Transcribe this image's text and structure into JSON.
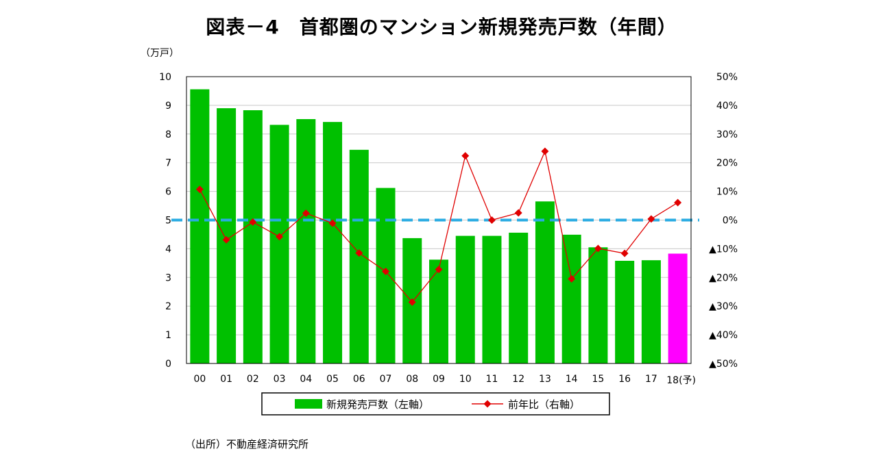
{
  "title": "図表－4　首都圏のマンション新規発売戸数（年間）",
  "source": "（出所）不動産経済研究所",
  "chart_data": {
    "type": "bar",
    "categories": [
      "00",
      "01",
      "02",
      "03",
      "04",
      "05",
      "06",
      "07",
      "08",
      "09",
      "10",
      "11",
      "12",
      "13",
      "14",
      "15",
      "16",
      "17",
      "18(予)"
    ],
    "left_axis": {
      "unit_label": "（万戸）",
      "min": 0,
      "max": 10,
      "ticks": [
        "0",
        "1",
        "2",
        "3",
        "4",
        "5",
        "6",
        "7",
        "8",
        "9",
        "10"
      ]
    },
    "right_axis": {
      "min": -50,
      "max": 50,
      "ticks": [
        "▲50%",
        "▲40%",
        "▲30%",
        "▲20%",
        "▲10%",
        "0%",
        "10%",
        "20%",
        "30%",
        "40%",
        "50%"
      ]
    },
    "series": [
      {
        "name": "新規発売戸数（左軸）",
        "type": "bar",
        "axis": "left",
        "values": [
          9.56,
          8.9,
          8.83,
          8.32,
          8.52,
          8.42,
          7.45,
          6.12,
          4.37,
          3.62,
          4.45,
          4.45,
          4.56,
          5.65,
          4.49,
          4.05,
          3.58,
          3.6,
          3.83
        ],
        "colors": [
          "#00c000",
          "#00c000",
          "#00c000",
          "#00c000",
          "#00c000",
          "#00c000",
          "#00c000",
          "#00c000",
          "#00c000",
          "#00c000",
          "#00c000",
          "#00c000",
          "#00c000",
          "#00c000",
          "#00c000",
          "#00c000",
          "#00c000",
          "#00c000",
          "#ff00ff"
        ]
      },
      {
        "name": "前年比（右軸）",
        "type": "line",
        "axis": "right",
        "color": "#e00000",
        "values": [
          10.7,
          -6.9,
          -0.7,
          -5.8,
          2.4,
          -1.1,
          -11.5,
          -17.9,
          -28.6,
          -17.2,
          22.4,
          0.0,
          2.5,
          24.0,
          -20.5,
          -9.9,
          -11.6,
          0.4,
          6.1
        ]
      }
    ],
    "reference_line": {
      "axis": "right",
      "value": 0,
      "color": "#29abe2"
    },
    "grid": true,
    "legend": "bottom"
  }
}
